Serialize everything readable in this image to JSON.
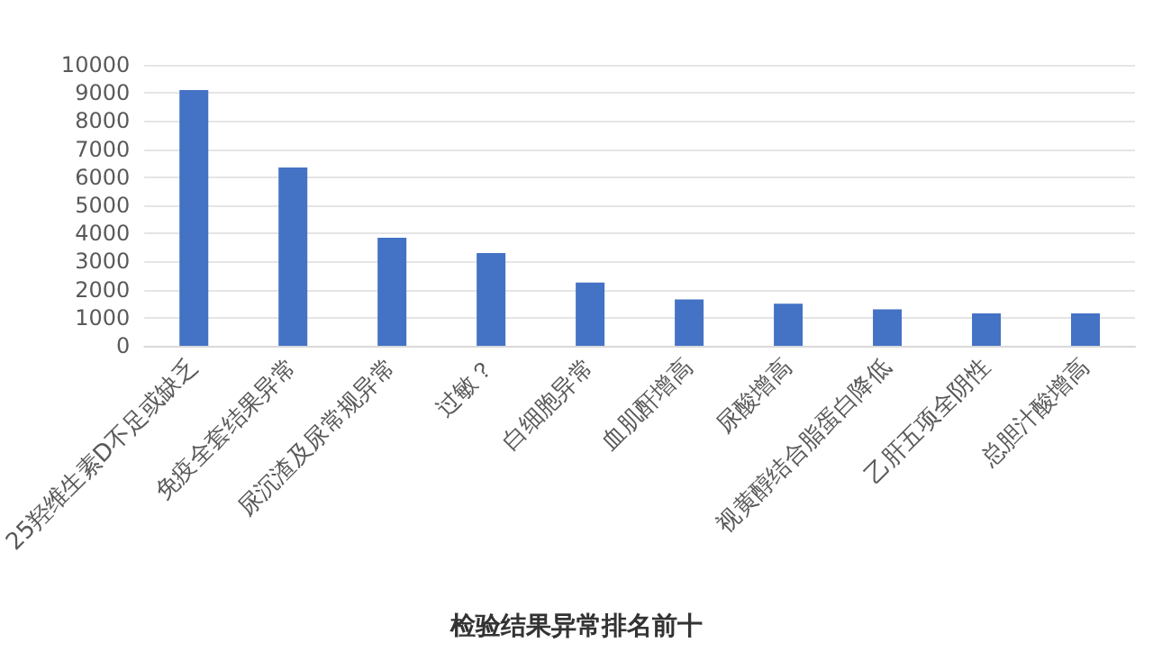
{
  "chart_data": {
    "type": "bar",
    "title": "检验结果异常排名前十",
    "categories": [
      "25羟维生素D不足或缺乏",
      "免疫全套结果异常",
      "尿沉渣及尿常规异常",
      "过敏？",
      "白细胞异常",
      "血肌酐增高",
      "尿酸增高",
      "视黄醇结合脂蛋白降低",
      "乙肝五项全阴性",
      "总胆汁酸增高"
    ],
    "values": [
      9100,
      6350,
      3850,
      3300,
      2250,
      1650,
      1500,
      1300,
      1150,
      1150
    ],
    "color": "#4472c4",
    "ylim": [
      0,
      10000
    ],
    "yticks": [
      0,
      1000,
      2000,
      3000,
      4000,
      5000,
      6000,
      7000,
      8000,
      9000,
      10000
    ],
    "grid": "y"
  }
}
